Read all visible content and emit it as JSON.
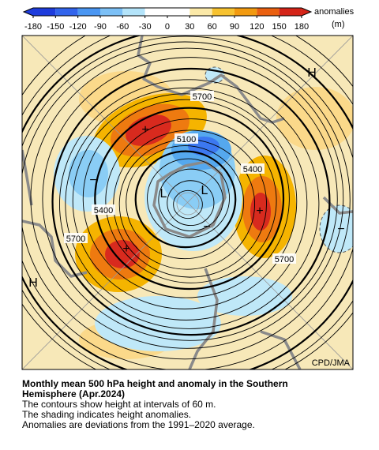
{
  "colorbar": {
    "ticks": [
      -180,
      -150,
      -120,
      -90,
      -60,
      -30,
      0,
      30,
      60,
      90,
      120,
      150,
      180
    ],
    "title": "anomalies",
    "unit": "(m)"
  },
  "map": {
    "contour_labels": [
      "5700",
      "5100",
      "5400",
      "5400",
      "5700",
      "5700"
    ],
    "centers": [
      "H",
      "H",
      "L",
      "L"
    ],
    "signs": [
      "+",
      "+",
      "+",
      "−",
      "−",
      "−"
    ],
    "credit": "CPD/JMA"
  },
  "caption": {
    "title_lines": [
      "Monthly mean 500 hPa height and anomaly in the Southern",
      "Hemisphere (Apr.2024)"
    ],
    "lines": [
      "The contours show height at intervals of 60 m.",
      "The shading indicates height anomalies.",
      "Anomalies are deviations from the 1991–2020 average."
    ]
  }
}
